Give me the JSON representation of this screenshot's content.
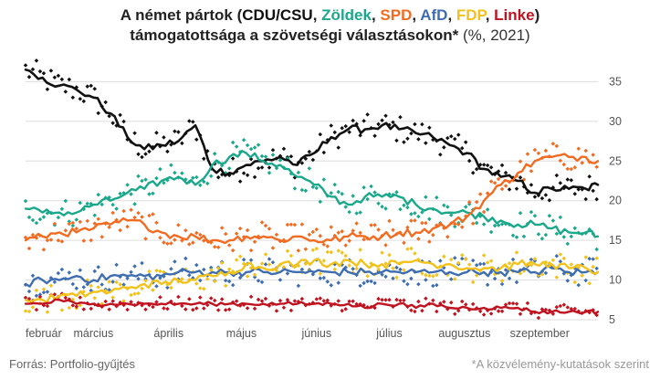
{
  "title": {
    "prefix": "A német pártok (",
    "parties": [
      {
        "name": "CDU/CSU",
        "color": "#111111"
      },
      {
        "name": "Zöldek",
        "color": "#1aa88a"
      },
      {
        "name": "SPD",
        "color": "#f26b21"
      },
      {
        "name": "AfD",
        "color": "#3e6db1"
      },
      {
        "name": "FDP",
        "color": "#f2c21b"
      },
      {
        "name": "Linke",
        "color": "#c0121f"
      }
    ],
    "separator": ", ",
    "close": ")",
    "line2_bold": "támogatottsága a szövetségi választásokon*",
    "line2_light": " (%, 2021)"
  },
  "source": "Forrás: Portfolio-gyűjtés",
  "note": "*A közvélemény-kutatások szerint",
  "chart_data": {
    "type": "line",
    "x_axis_labels": [
      "február",
      "március",
      "április",
      "május",
      "június",
      "július",
      "augusztus",
      "szeptember"
    ],
    "month_starts": [
      "2021-02-01",
      "2021-03-01",
      "2021-04-01",
      "2021-05-01",
      "2021-06-01",
      "2021-07-01",
      "2021-08-01",
      "2021-09-01"
    ],
    "x_range": [
      "2021-02-01",
      "2021-09-25"
    ],
    "ylim": [
      5,
      37
    ],
    "y_ticks": [
      5,
      10,
      15,
      20,
      25,
      30,
      35
    ],
    "grid": "horizontal",
    "notes": "Lines are moving averages of polls; dots are individual poll results.",
    "series": [
      {
        "name": "CDU/CSU",
        "color": "#111111",
        "x": [
          "2021-02-01",
          "2021-02-08",
          "2021-02-15",
          "2021-02-22",
          "2021-03-01",
          "2021-03-08",
          "2021-03-15",
          "2021-03-22",
          "2021-03-29",
          "2021-04-05",
          "2021-04-12",
          "2021-04-19",
          "2021-04-26",
          "2021-05-03",
          "2021-05-10",
          "2021-05-17",
          "2021-05-24",
          "2021-05-31",
          "2021-06-07",
          "2021-06-14",
          "2021-06-21",
          "2021-06-28",
          "2021-07-05",
          "2021-07-12",
          "2021-07-19",
          "2021-07-26",
          "2021-08-02",
          "2021-08-09",
          "2021-08-16",
          "2021-08-23",
          "2021-08-30",
          "2021-09-06",
          "2021-09-13",
          "2021-09-20",
          "2021-09-25"
        ],
        "values": [
          36.5,
          35.5,
          34.5,
          34,
          33,
          31,
          28,
          26.5,
          27,
          27.5,
          29.5,
          24,
          23.5,
          24.5,
          25,
          25.5,
          24.5,
          26,
          28,
          29,
          29,
          29.5,
          29,
          28.5,
          28,
          27,
          26,
          24,
          23,
          22.5,
          21,
          21.5,
          21.5,
          21.5,
          22
        ]
      },
      {
        "name": "Zöldek",
        "color": "#1aa88a",
        "x": [
          "2021-02-01",
          "2021-02-08",
          "2021-02-15",
          "2021-02-22",
          "2021-03-01",
          "2021-03-08",
          "2021-03-15",
          "2021-03-22",
          "2021-03-29",
          "2021-04-05",
          "2021-04-12",
          "2021-04-19",
          "2021-04-26",
          "2021-05-03",
          "2021-05-10",
          "2021-05-17",
          "2021-05-24",
          "2021-05-31",
          "2021-06-07",
          "2021-06-14",
          "2021-06-21",
          "2021-06-28",
          "2021-07-05",
          "2021-07-12",
          "2021-07-19",
          "2021-07-26",
          "2021-08-02",
          "2021-08-09",
          "2021-08-16",
          "2021-08-23",
          "2021-08-30",
          "2021-09-06",
          "2021-09-13",
          "2021-09-20",
          "2021-09-25"
        ],
        "values": [
          19,
          18.5,
          18.5,
          18.5,
          19.5,
          20,
          21,
          21.5,
          22.5,
          23,
          22,
          24.5,
          25.5,
          26,
          25,
          24.5,
          23,
          22,
          20.5,
          19.5,
          20.5,
          20.5,
          20.5,
          19.5,
          19,
          18.5,
          18.5,
          18,
          17.5,
          17,
          17,
          16.5,
          16,
          16,
          15.5
        ]
      },
      {
        "name": "SPD",
        "color": "#f26b21",
        "x": [
          "2021-02-01",
          "2021-02-08",
          "2021-02-15",
          "2021-02-22",
          "2021-03-01",
          "2021-03-08",
          "2021-03-15",
          "2021-03-22",
          "2021-03-29",
          "2021-04-05",
          "2021-04-12",
          "2021-04-19",
          "2021-04-26",
          "2021-05-03",
          "2021-05-10",
          "2021-05-17",
          "2021-05-24",
          "2021-05-31",
          "2021-06-07",
          "2021-06-14",
          "2021-06-21",
          "2021-06-28",
          "2021-07-05",
          "2021-07-12",
          "2021-07-19",
          "2021-07-26",
          "2021-08-02",
          "2021-08-09",
          "2021-08-16",
          "2021-08-23",
          "2021-08-30",
          "2021-09-06",
          "2021-09-13",
          "2021-09-20",
          "2021-09-25"
        ],
        "values": [
          15,
          15.5,
          16,
          16,
          16.5,
          17,
          17.5,
          17,
          16,
          15.5,
          15.5,
          15,
          15,
          15.5,
          15.5,
          15,
          15.5,
          15,
          15,
          15.5,
          15.5,
          15.5,
          16,
          16,
          16.5,
          17,
          18,
          20,
          22,
          23.5,
          25,
          25.5,
          25.5,
          25.5,
          25
        ]
      },
      {
        "name": "AfD",
        "color": "#3e6db1",
        "x": [
          "2021-02-01",
          "2021-02-08",
          "2021-02-15",
          "2021-02-22",
          "2021-03-01",
          "2021-03-08",
          "2021-03-15",
          "2021-03-22",
          "2021-03-29",
          "2021-04-05",
          "2021-04-12",
          "2021-04-19",
          "2021-04-26",
          "2021-05-03",
          "2021-05-10",
          "2021-05-17",
          "2021-05-24",
          "2021-05-31",
          "2021-06-07",
          "2021-06-14",
          "2021-06-21",
          "2021-06-28",
          "2021-07-05",
          "2021-07-12",
          "2021-07-19",
          "2021-07-26",
          "2021-08-02",
          "2021-08-09",
          "2021-08-16",
          "2021-08-23",
          "2021-08-30",
          "2021-09-06",
          "2021-09-13",
          "2021-09-20",
          "2021-09-25"
        ],
        "values": [
          9.5,
          10,
          10,
          10.5,
          10,
          10.5,
          10.5,
          10.5,
          10.5,
          11,
          11,
          11,
          11,
          11,
          11,
          11,
          11,
          11,
          11,
          11,
          11,
          11,
          11,
          11,
          11,
          11,
          11,
          11,
          11,
          11,
          11,
          11.5,
          11,
          11,
          11
        ]
      },
      {
        "name": "FDP",
        "color": "#f2c21b",
        "x": [
          "2021-02-01",
          "2021-02-08",
          "2021-02-15",
          "2021-02-22",
          "2021-03-01",
          "2021-03-08",
          "2021-03-15",
          "2021-03-22",
          "2021-03-29",
          "2021-04-05",
          "2021-04-12",
          "2021-04-19",
          "2021-04-26",
          "2021-05-03",
          "2021-05-10",
          "2021-05-17",
          "2021-05-24",
          "2021-05-31",
          "2021-06-07",
          "2021-06-14",
          "2021-06-21",
          "2021-06-28",
          "2021-07-05",
          "2021-07-12",
          "2021-07-19",
          "2021-07-26",
          "2021-08-02",
          "2021-08-09",
          "2021-08-16",
          "2021-08-23",
          "2021-08-30",
          "2021-09-06",
          "2021-09-13",
          "2021-09-20",
          "2021-09-25"
        ],
        "values": [
          7.5,
          7.5,
          8,
          8,
          8.5,
          8.5,
          9,
          9.5,
          9.5,
          10,
          10,
          10.5,
          11,
          12,
          11.5,
          12,
          12,
          12.5,
          12,
          12.5,
          12,
          12,
          12,
          12.5,
          12,
          12,
          11.5,
          11.5,
          11.5,
          12,
          12,
          12,
          11.5,
          11.5,
          11
        ]
      },
      {
        "name": "Linke",
        "color": "#c0121f",
        "x": [
          "2021-02-01",
          "2021-02-08",
          "2021-02-15",
          "2021-02-22",
          "2021-03-01",
          "2021-03-08",
          "2021-03-15",
          "2021-03-22",
          "2021-03-29",
          "2021-04-05",
          "2021-04-12",
          "2021-04-19",
          "2021-04-26",
          "2021-05-03",
          "2021-05-10",
          "2021-05-17",
          "2021-05-24",
          "2021-05-31",
          "2021-06-07",
          "2021-06-14",
          "2021-06-21",
          "2021-06-28",
          "2021-07-05",
          "2021-07-12",
          "2021-07-19",
          "2021-07-26",
          "2021-08-02",
          "2021-08-09",
          "2021-08-16",
          "2021-08-23",
          "2021-08-30",
          "2021-09-06",
          "2021-09-13",
          "2021-09-20",
          "2021-09-25"
        ],
        "values": [
          7,
          7,
          7.5,
          7,
          7,
          7,
          7,
          7,
          7,
          7,
          7,
          7,
          7,
          7,
          7,
          7,
          7,
          7,
          7,
          7,
          6.5,
          7,
          7,
          6.5,
          7,
          6.5,
          6.5,
          6.5,
          6.5,
          6.5,
          6,
          6,
          6,
          6,
          6
        ]
      }
    ]
  }
}
